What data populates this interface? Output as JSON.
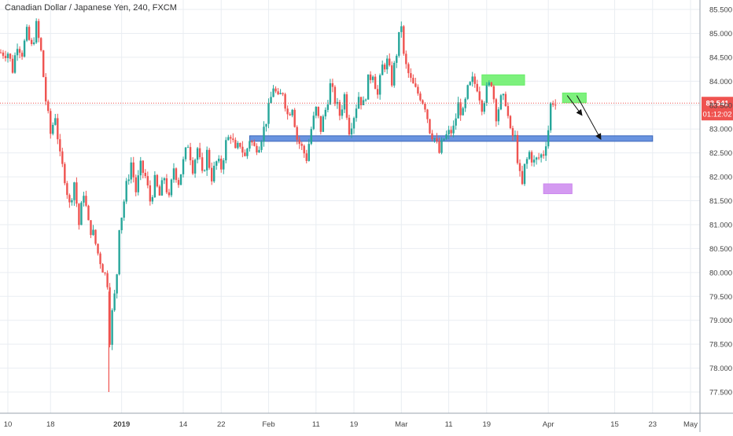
{
  "chart_data": {
    "type": "candlestick",
    "title": "Canadian Dollar / Japanese Yen, 240, FXCM",
    "ylim": [
      77.3,
      85.65
    ],
    "y_ticks": [
      "85.500",
      "85.000",
      "84.500",
      "84.000",
      "83.500",
      "83.000",
      "82.500",
      "82.000",
      "81.500",
      "81.000",
      "80.500",
      "80.000",
      "79.500",
      "79.000",
      "78.500",
      "78.000",
      "77.500"
    ],
    "x_ticks": [
      {
        "label": "10",
        "day": -23,
        "bold": false
      },
      {
        "label": "18",
        "day": -14,
        "bold": false
      },
      {
        "label": "2019",
        "day": 1,
        "bold": true
      },
      {
        "label": "14",
        "day": 14,
        "bold": false
      },
      {
        "label": "22",
        "day": 22,
        "bold": false
      },
      {
        "label": "Feb",
        "day": 32,
        "bold": false
      },
      {
        "label": "11",
        "day": 42,
        "bold": false
      },
      {
        "label": "19",
        "day": 50,
        "bold": false
      },
      {
        "label": "Mar",
        "day": 60,
        "bold": false
      },
      {
        "label": "11",
        "day": 70,
        "bold": false
      },
      {
        "label": "19",
        "day": 78,
        "bold": false
      },
      {
        "label": "Apr",
        "day": 91,
        "bold": false
      },
      {
        "label": "15",
        "day": 105,
        "bold": false
      },
      {
        "label": "23",
        "day": 113,
        "bold": false
      },
      {
        "label": "May",
        "day": 121,
        "bold": false
      }
    ],
    "path_points": [
      [
        -23,
        84.6
      ],
      [
        -22,
        84.25
      ],
      [
        -21,
        84.8
      ],
      [
        -20,
        84.6
      ],
      [
        -19,
        85.0
      ],
      [
        -18,
        84.7
      ],
      [
        -17,
        85.15
      ],
      [
        -16,
        84.6
      ],
      [
        -15,
        83.6
      ],
      [
        -14,
        82.9
      ],
      [
        -13,
        83.3
      ],
      [
        -12,
        82.4
      ],
      [
        -11,
        82.0
      ],
      [
        -10,
        81.4
      ],
      [
        -9,
        81.9
      ],
      [
        -8,
        81.0
      ],
      [
        -7,
        81.7
      ],
      [
        -6,
        81.0
      ],
      [
        -5,
        80.8
      ],
      [
        -4,
        80.4
      ],
      [
        -3,
        80.1
      ],
      [
        -2,
        79.8
      ],
      [
        -1.6,
        78.5
      ],
      [
        -1.2,
        79.0
      ],
      [
        -0.5,
        79.5
      ],
      [
        0,
        80.0
      ],
      [
        0.5,
        81.0
      ],
      [
        1,
        81.2
      ],
      [
        2,
        81.8
      ],
      [
        3,
        82.3
      ],
      [
        4,
        81.7
      ],
      [
        5,
        82.2
      ],
      [
        6,
        82.0
      ],
      [
        7,
        81.5
      ],
      [
        8,
        81.9
      ],
      [
        9,
        81.6
      ],
      [
        10,
        82.0
      ],
      [
        11,
        81.5
      ],
      [
        12,
        82.2
      ],
      [
        13,
        81.9
      ],
      [
        14,
        82.3
      ],
      [
        15,
        82.7
      ],
      [
        16,
        82.2
      ],
      [
        17,
        82.6
      ],
      [
        18,
        82.0
      ],
      [
        19,
        82.5
      ],
      [
        20,
        82.0
      ],
      [
        21,
        82.3
      ],
      [
        22,
        82.2
      ],
      [
        23,
        82.7
      ],
      [
        24,
        82.9
      ],
      [
        25,
        82.5
      ],
      [
        26,
        82.7
      ],
      [
        27,
        82.4
      ],
      [
        28,
        82.8
      ],
      [
        29,
        82.6
      ],
      [
        30,
        82.7
      ],
      [
        31,
        83.0
      ],
      [
        32,
        83.4
      ],
      [
        33,
        83.9
      ],
      [
        34,
        83.6
      ],
      [
        35,
        83.8
      ],
      [
        36,
        83.3
      ],
      [
        37,
        83.5
      ],
      [
        38,
        82.8
      ],
      [
        39,
        82.6
      ],
      [
        40,
        82.4
      ],
      [
        41,
        83.0
      ],
      [
        42,
        83.4
      ],
      [
        43,
        83.0
      ],
      [
        44,
        83.4
      ],
      [
        45,
        83.9
      ],
      [
        46,
        83.6
      ],
      [
        47,
        83.3
      ],
      [
        48,
        83.7
      ],
      [
        49,
        83.0
      ],
      [
        50,
        83.3
      ],
      [
        51,
        83.7
      ],
      [
        52,
        83.5
      ],
      [
        53,
        84.0
      ],
      [
        54,
        84.2
      ],
      [
        55,
        83.7
      ],
      [
        56,
        84.3
      ],
      [
        57,
        84.4
      ],
      [
        58,
        84.0
      ],
      [
        59,
        84.6
      ],
      [
        60,
        85.2
      ],
      [
        60.5,
        84.5
      ],
      [
        61,
        84.3
      ],
      [
        62,
        84.0
      ],
      [
        63,
        83.8
      ],
      [
        64,
        83.7
      ],
      [
        65,
        83.5
      ],
      [
        66,
        83.0
      ],
      [
        67,
        82.8
      ],
      [
        68,
        82.5
      ],
      [
        69,
        82.8
      ],
      [
        70,
        82.9
      ],
      [
        71,
        83.0
      ],
      [
        72,
        83.5
      ],
      [
        73,
        83.3
      ],
      [
        74,
        83.8
      ],
      [
        75,
        84.0
      ],
      [
        76,
        83.9
      ],
      [
        77,
        83.5
      ],
      [
        78,
        83.8
      ],
      [
        79,
        84.0
      ],
      [
        80,
        83.3
      ],
      [
        81,
        83.6
      ],
      [
        82,
        83.6
      ],
      [
        83,
        82.9
      ],
      [
        84,
        82.8
      ],
      [
        85,
        82.0
      ],
      [
        85.5,
        81.8
      ],
      [
        86,
        82.2
      ],
      [
        87,
        82.5
      ],
      [
        88,
        82.3
      ],
      [
        89,
        82.4
      ],
      [
        90,
        82.5
      ],
      [
        91,
        83.0
      ],
      [
        91.5,
        83.5
      ],
      [
        92,
        83.6
      ],
      [
        92.5,
        83.5
      ]
    ],
    "current_price": "83.541",
    "countdown": "01:12:02",
    "support_level": 82.8,
    "zones": [
      {
        "kind": "resistance",
        "color": "#66ee66",
        "day_start": 77,
        "day_end": 86,
        "y_low": 83.95,
        "y_high": 84.1
      },
      {
        "kind": "resistance",
        "color": "#66ee66",
        "day_start": 94,
        "day_end": 99,
        "y_low": 83.58,
        "y_high": 83.72
      },
      {
        "kind": "low",
        "color": "#cc88ee",
        "day_start": 90,
        "day_end": 96,
        "y_low": 81.68,
        "y_high": 81.82
      }
    ],
    "support_band": {
      "color": "#5a88dd",
      "day_start": 28,
      "day_end": 113,
      "y": 82.8
    },
    "forecast_arrows": [
      {
        "from": [
          95,
          83.7
        ],
        "to": [
          98,
          83.3
        ]
      },
      {
        "from": [
          97,
          83.7
        ],
        "to": [
          102,
          82.8
        ]
      }
    ],
    "colors": {
      "up": "#26a69a",
      "down": "#ef5350",
      "price_line": "#ef5350",
      "grid": "#e9edf2"
    }
  }
}
